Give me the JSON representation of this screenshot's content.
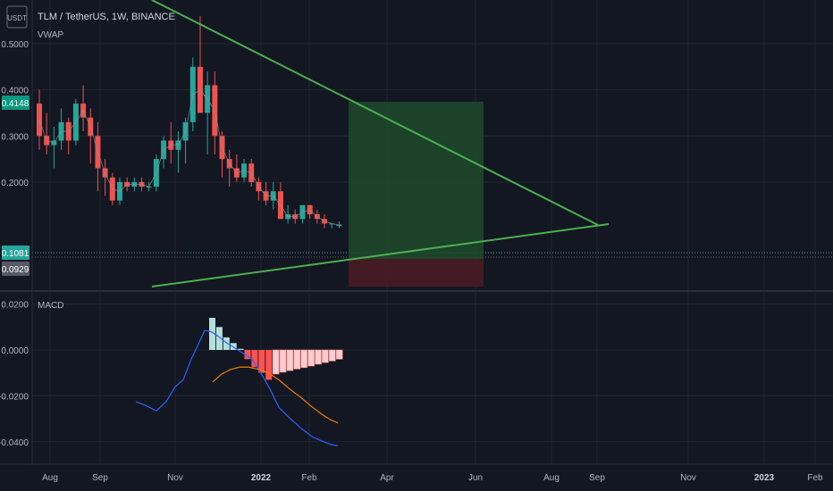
{
  "header": {
    "currency_badge": "USDT",
    "symbol_line": "TLM / TetherUS, 1W, BINANCE",
    "indicator_label": "VWAP"
  },
  "macd_panel": {
    "label": "MACD"
  },
  "colors": {
    "background": "#131722",
    "grid": "#222633",
    "up_candle": "#26a69a",
    "down_candle": "#ef5350",
    "trendline": "#4caf50",
    "long_target_zone": "#1f4a2c",
    "long_stop_zone": "#4a1c26",
    "macd_line": "#2962ff",
    "signal_line": "#f57c00",
    "hist_pos_strong": "#b2dfdb",
    "hist_pos_weak": "#b2dfdb",
    "hist_neg_strong": "#ff5252",
    "hist_neg_weak": "#ffcdd2"
  },
  "chart_data": {
    "type": "candlestick",
    "title": "TLM / TetherUS, 1W, BINANCE",
    "price_axis": {
      "ticks": [
        "0.5000",
        "0.4000",
        "0.3000",
        "0.2000"
      ],
      "markers": [
        {
          "label": "0.4148",
          "color": "#089981"
        },
        {
          "label": "0.1081",
          "color": "#26a69a"
        },
        {
          "label": "0.0929",
          "color": "#555a66"
        }
      ]
    },
    "time_axis": {
      "ticks": [
        "Aug",
        "Sep",
        "Nov",
        "2022",
        "Feb",
        "Apr",
        "Jun",
        "Aug",
        "Sep",
        "Nov",
        "2023",
        "Feb"
      ],
      "bold_ticks": [
        "2022",
        "2023"
      ]
    },
    "macd_axis": {
      "ticks": [
        "0.0200",
        "0.0000",
        "-0.0200",
        "-0.0400"
      ]
    }
  }
}
